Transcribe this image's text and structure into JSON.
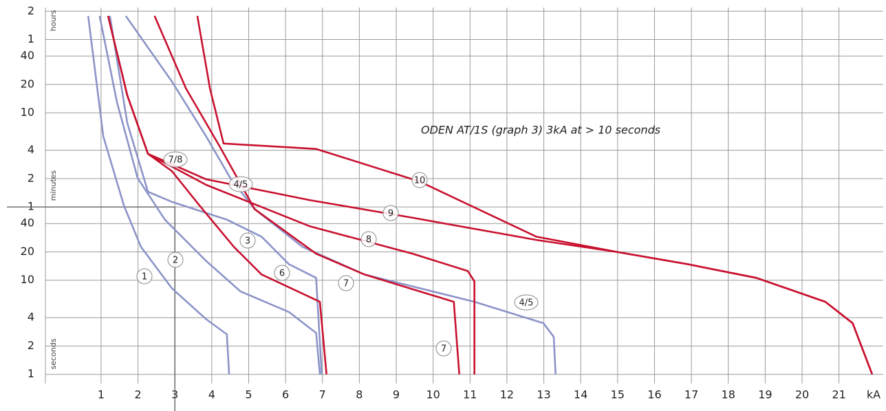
{
  "chart_data": {
    "type": "line",
    "annotation": "ODEN AT/1S (graph 3) 3kA at > 10 seconds",
    "x_label": "kA",
    "y_units": [
      "hours",
      "minutes",
      "seconds"
    ],
    "log_y": true,
    "grid": true,
    "xlim": [
      -0.5,
      22.2
    ],
    "xticks": [
      1,
      2,
      3,
      4,
      5,
      6,
      7,
      8,
      9,
      10,
      11,
      12,
      13,
      14,
      15,
      16,
      17,
      18,
      19,
      20,
      21
    ],
    "ylim": [
      0.8,
      9000
    ],
    "yticks": [
      {
        "value": 7200,
        "label": "2"
      },
      {
        "value": 3600,
        "label": "1"
      },
      {
        "value": 2400,
        "label": "40"
      },
      {
        "value": 1200,
        "label": "20"
      },
      {
        "value": 600,
        "label": "10"
      },
      {
        "value": 240,
        "label": "4"
      },
      {
        "value": 120,
        "label": "2"
      },
      {
        "value": 60,
        "label": "1"
      },
      40,
      20,
      10,
      4,
      2,
      1
    ],
    "reference": {
      "x": 3,
      "y": 60
    },
    "series": [
      {
        "name": "1",
        "color": "#8c94c8",
        "x": [
          0.65,
          1.06,
          1.62,
          2.08,
          2.92,
          3.85,
          4.41,
          4.47
        ],
        "values": [
          6410,
          336,
          62,
          22.6,
          8.2,
          3.85,
          2.66,
          1
        ]
      },
      {
        "name": "2",
        "color": "#8c94c8",
        "x": [
          0.96,
          1.43,
          1.99,
          2.73,
          3.85,
          4.78,
          6.09,
          6.83,
          6.93
        ],
        "values": [
          6410,
          780,
          122,
          44,
          16,
          7.6,
          4.6,
          2.75,
          1
        ]
      },
      {
        "name": "3",
        "color": "#8c94c8",
        "x": [
          1.24,
          1.71,
          2.27,
          2.92,
          4.41,
          5.35,
          6.09,
          6.83,
          6.98
        ],
        "values": [
          6410,
          470,
          87,
          68,
          44,
          29,
          14.8,
          10.6,
          1
        ]
      },
      {
        "name": "4/5",
        "color": "#8c94c8",
        "x": [
          1.67,
          2.92,
          3.85,
          4.5,
          5.16,
          6.46,
          8.14,
          11.12,
          12.99,
          13.27,
          13.32
        ],
        "values": [
          6410,
          1290,
          336,
          122,
          57,
          22.6,
          11.5,
          5.9,
          3.5,
          2.5,
          1
        ]
      },
      {
        "name": "6",
        "color": "#c8102e",
        "x": [
          1.19,
          1.71,
          2.27,
          2.92,
          3.67,
          4.6,
          5.35,
          6.93,
          7.11
        ],
        "values": [
          6410,
          922,
          220,
          144,
          62,
          22.6,
          11.5,
          5.9,
          1
        ]
      },
      {
        "name": "7",
        "color": "#c8102e",
        "x": [
          2.45,
          3.3,
          4.22,
          5.16,
          6.83,
          8.14,
          10.56,
          10.71
        ],
        "values": [
          6410,
          1090,
          261,
          57,
          19.1,
          11.5,
          5.9,
          1
        ]
      },
      {
        "name": "8",
        "color": "#c8102e",
        "x": [
          1.19,
          1.71,
          2.27,
          3.85,
          6.65,
          9.45,
          10.94,
          11.12,
          11.12
        ],
        "values": [
          6410,
          922,
          220,
          103,
          37.5,
          19.1,
          12.5,
          9.7,
          1
        ]
      },
      {
        "name": "9",
        "color": "#c8102e",
        "x": [
          2.27,
          3.85,
          6.65,
          9.45,
          12.8,
          15.04,
          16.9,
          18.76,
          20.63,
          21.37,
          21.9
        ],
        "values": [
          220,
          118,
          71,
          46,
          26.8,
          19.8,
          14.8,
          10.6,
          5.9,
          3.5,
          1
        ]
      },
      {
        "name": "10",
        "color": "#c8102e",
        "x": [
          3.61,
          3.95,
          4.32,
          6.83,
          9.63,
          12.8,
          15.04,
          16.9,
          18.76,
          20.63,
          21.37,
          21.9
        ],
        "values": [
          6410,
          1090,
          283,
          248,
          112,
          29,
          19.8,
          14.8,
          10.6,
          5.9,
          3.5,
          1
        ]
      }
    ],
    "extra_labels": [
      "7/8",
      "4/5",
      "7"
    ]
  }
}
